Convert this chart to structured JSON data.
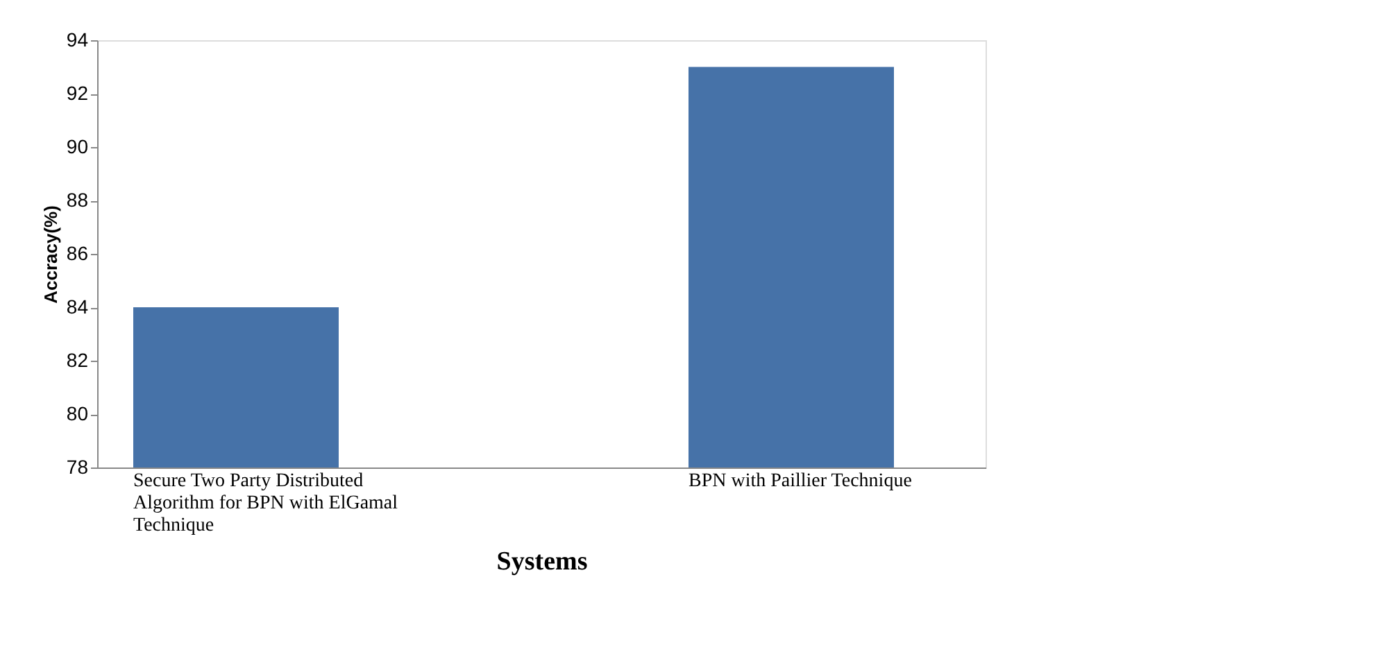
{
  "chart_data": {
    "type": "bar",
    "xlabel": "Systems",
    "ylabel": "Accracy(%)",
    "categories": [
      "Secure Two Party Distributed Algorithm for BPN with ElGamal Technique",
      "BPN with Paillier Technique"
    ],
    "values": [
      84,
      93
    ],
    "color": "#4672a8",
    "ylim": [
      78,
      94
    ],
    "yticks": [
      78,
      80,
      82,
      84,
      86,
      88,
      90,
      92,
      94
    ],
    "grid": false
  }
}
